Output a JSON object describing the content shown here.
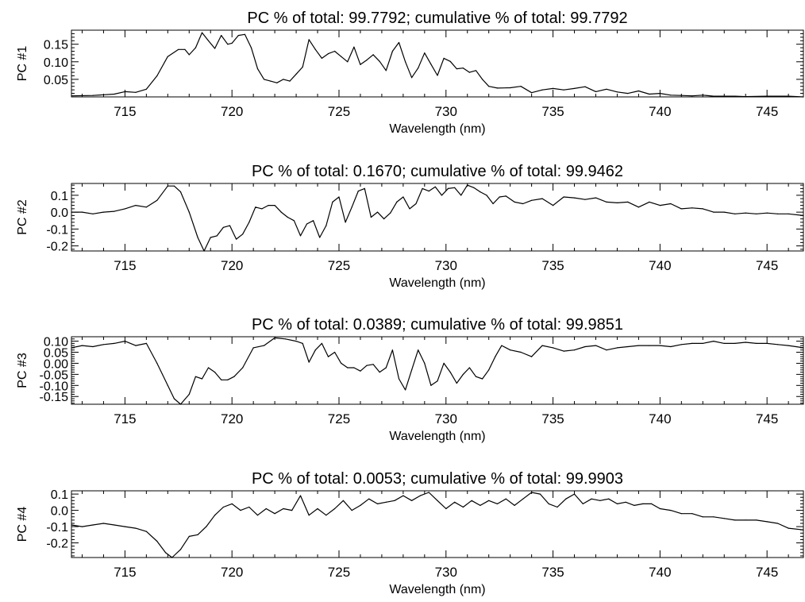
{
  "chart_data": [
    {
      "type": "line",
      "title": "PC % of total: 99.7792; cumulative % of total: 99.7792",
      "xlabel": "Wavelength (nm)",
      "ylabel": "PC #1",
      "xlim": [
        712.5,
        746.7
      ],
      "ylim": [
        0.0,
        0.19
      ],
      "xticks": [
        715,
        720,
        725,
        730,
        735,
        740,
        745
      ],
      "yticks": [
        0.05,
        0.1,
        0.15
      ],
      "ytick_labels": [
        "0.05",
        "0.10",
        "0.15"
      ],
      "series": [
        {
          "x": [
            712.5,
            713.5,
            714.5,
            715.0,
            715.5,
            716.0,
            716.5,
            717.0,
            717.5,
            717.8,
            718.0,
            718.3,
            718.6,
            718.9,
            719.2,
            719.5,
            719.8,
            720.0,
            720.3,
            720.6,
            720.9,
            721.2,
            721.5,
            721.8,
            722.1,
            722.4,
            722.7,
            723.0,
            723.3,
            723.6,
            723.9,
            724.2,
            724.5,
            724.8,
            725.1,
            725.4,
            725.7,
            726.0,
            726.3,
            726.6,
            726.9,
            727.2,
            727.5,
            727.8,
            728.1,
            728.4,
            728.7,
            729.0,
            729.3,
            729.6,
            729.9,
            730.2,
            730.5,
            730.8,
            731.1,
            731.4,
            731.7,
            732.0,
            732.4,
            733.0,
            733.5,
            734.0,
            734.5,
            735.0,
            735.5,
            736.0,
            736.5,
            737.0,
            737.5,
            738.0,
            738.5,
            739.0,
            739.5,
            740.0,
            740.5,
            741.0,
            741.5,
            742.0,
            742.5,
            743.0,
            743.5,
            744.0,
            745.0,
            746.0,
            746.7
          ],
          "y": [
            0.003,
            0.004,
            0.008,
            0.015,
            0.013,
            0.022,
            0.06,
            0.115,
            0.135,
            0.135,
            0.12,
            0.14,
            0.183,
            0.16,
            0.138,
            0.175,
            0.15,
            0.153,
            0.175,
            0.178,
            0.14,
            0.08,
            0.05,
            0.045,
            0.04,
            0.05,
            0.045,
            0.065,
            0.085,
            0.163,
            0.135,
            0.11,
            0.123,
            0.13,
            0.115,
            0.1,
            0.142,
            0.092,
            0.105,
            0.12,
            0.101,
            0.075,
            0.13,
            0.155,
            0.1,
            0.055,
            0.082,
            0.125,
            0.093,
            0.061,
            0.11,
            0.101,
            0.08,
            0.082,
            0.07,
            0.075,
            0.05,
            0.03,
            0.025,
            0.026,
            0.03,
            0.012,
            0.02,
            0.024,
            0.02,
            0.024,
            0.029,
            0.015,
            0.022,
            0.014,
            0.01,
            0.017,
            0.008,
            0.01,
            0.005,
            0.004,
            0.003,
            0.005,
            0.002,
            0.002,
            0.002,
            0.001,
            0.002,
            0.002,
            0.0
          ]
        }
      ]
    },
    {
      "type": "line",
      "title": "PC % of total:  0.1670; cumulative % of total: 99.9462",
      "xlabel": "Wavelength (nm)",
      "ylabel": "PC #2",
      "xlim": [
        712.5,
        746.7
      ],
      "ylim": [
        -0.23,
        0.17
      ],
      "xticks": [
        715,
        720,
        725,
        730,
        735,
        740,
        745
      ],
      "yticks": [
        0.1,
        0.0,
        -0.1,
        -0.2
      ],
      "ytick_labels": [
        "0.1",
        "0.0",
        "-0.1",
        "-0.2"
      ],
      "series": [
        {
          "x": [
            712.5,
            713.0,
            713.5,
            714.0,
            714.5,
            715.0,
            715.5,
            716.0,
            716.5,
            717.0,
            717.3,
            717.6,
            718.0,
            718.4,
            718.7,
            719.0,
            719.3,
            719.6,
            719.9,
            720.2,
            720.5,
            720.8,
            721.1,
            721.4,
            721.7,
            722.0,
            722.3,
            722.6,
            722.9,
            723.2,
            723.5,
            723.8,
            724.1,
            724.4,
            724.7,
            725.0,
            725.3,
            725.6,
            725.9,
            726.2,
            726.5,
            726.8,
            727.1,
            727.4,
            727.7,
            728.0,
            728.3,
            728.6,
            728.9,
            729.2,
            729.5,
            729.8,
            730.1,
            730.4,
            730.7,
            731.0,
            731.3,
            731.6,
            731.9,
            732.2,
            732.5,
            732.8,
            733.2,
            733.6,
            734.0,
            734.5,
            735.0,
            735.5,
            736.0,
            736.5,
            737.0,
            737.5,
            738.0,
            738.5,
            739.0,
            739.5,
            740.0,
            740.5,
            741.0,
            741.5,
            742.0,
            742.5,
            743.0,
            743.5,
            744.0,
            744.5,
            745.0,
            745.5,
            746.0,
            746.7
          ],
          "y": [
            0.0,
            0.0,
            -0.01,
            0.0,
            0.005,
            0.02,
            0.04,
            0.03,
            0.07,
            0.155,
            0.155,
            0.12,
            0.0,
            -0.15,
            -0.23,
            -0.15,
            -0.14,
            -0.09,
            -0.08,
            -0.16,
            -0.13,
            -0.06,
            0.03,
            0.02,
            0.04,
            0.04,
            0.0,
            -0.03,
            -0.05,
            -0.14,
            -0.07,
            -0.05,
            -0.15,
            -0.08,
            0.06,
            0.09,
            -0.06,
            0.03,
            0.125,
            0.14,
            -0.03,
            0.0,
            -0.04,
            -0.005,
            0.06,
            0.09,
            0.02,
            0.05,
            0.14,
            0.125,
            0.15,
            0.1,
            0.14,
            0.145,
            0.1,
            0.16,
            0.145,
            0.12,
            0.1,
            0.05,
            0.09,
            0.095,
            0.06,
            0.05,
            0.07,
            0.08,
            0.04,
            0.09,
            0.085,
            0.075,
            0.085,
            0.06,
            0.055,
            0.06,
            0.03,
            0.06,
            0.04,
            0.05,
            0.02,
            0.025,
            0.02,
            0.0,
            0.0,
            -0.01,
            -0.005,
            -0.01,
            -0.005,
            -0.01,
            -0.01,
            -0.02
          ]
        }
      ]
    },
    {
      "type": "line",
      "title": "PC % of total:  0.0389; cumulative % of total: 99.9851",
      "xlabel": "Wavelength (nm)",
      "ylabel": "PC #3",
      "xlim": [
        712.5,
        746.7
      ],
      "ylim": [
        -0.185,
        0.12
      ],
      "xticks": [
        715,
        720,
        725,
        730,
        735,
        740,
        745
      ],
      "yticks": [
        0.1,
        0.05,
        0.0,
        -0.05,
        -0.1,
        -0.15
      ],
      "ytick_labels": [
        "0.10",
        "0.05",
        "0.00",
        "-0.05",
        "-0.10",
        "-0.15"
      ],
      "series": [
        {
          "x": [
            712.5,
            713.0,
            713.5,
            714.0,
            714.5,
            715.0,
            715.5,
            716.0,
            716.5,
            717.0,
            717.3,
            717.6,
            718.0,
            718.3,
            718.6,
            718.9,
            719.2,
            719.5,
            719.8,
            720.1,
            720.5,
            721.0,
            721.5,
            722.0,
            722.5,
            723.0,
            723.3,
            723.6,
            723.9,
            724.2,
            724.5,
            724.8,
            725.1,
            725.4,
            725.7,
            726.0,
            726.3,
            726.6,
            726.9,
            727.2,
            727.5,
            727.8,
            728.1,
            728.4,
            728.7,
            729.0,
            729.3,
            729.6,
            729.9,
            730.2,
            730.5,
            730.8,
            731.1,
            731.4,
            731.7,
            732.0,
            732.3,
            732.6,
            733.0,
            733.5,
            734.0,
            734.5,
            735.0,
            735.5,
            736.0,
            736.5,
            737.0,
            737.5,
            738.0,
            738.5,
            739.0,
            739.5,
            740.0,
            740.5,
            741.0,
            741.5,
            742.0,
            742.5,
            743.0,
            743.5,
            744.0,
            744.5,
            745.0,
            745.5,
            746.0,
            746.7
          ],
          "y": [
            0.07,
            0.08,
            0.075,
            0.085,
            0.09,
            0.1,
            0.08,
            0.09,
            0.0,
            -0.1,
            -0.16,
            -0.185,
            -0.14,
            -0.06,
            -0.07,
            -0.02,
            -0.04,
            -0.075,
            -0.075,
            -0.06,
            -0.02,
            0.07,
            0.08,
            0.115,
            0.11,
            0.1,
            0.09,
            0.005,
            0.06,
            0.09,
            0.03,
            0.05,
            0.0,
            -0.02,
            -0.02,
            -0.035,
            -0.01,
            -0.005,
            -0.04,
            -0.02,
            0.06,
            -0.07,
            -0.12,
            -0.03,
            0.06,
            0.0,
            -0.1,
            -0.08,
            0.0,
            -0.04,
            -0.09,
            -0.05,
            -0.02,
            -0.06,
            -0.07,
            -0.03,
            0.03,
            0.08,
            0.06,
            0.05,
            0.03,
            0.08,
            0.07,
            0.055,
            0.06,
            0.075,
            0.08,
            0.06,
            0.07,
            0.075,
            0.08,
            0.08,
            0.08,
            0.075,
            0.085,
            0.09,
            0.09,
            0.1,
            0.09,
            0.09,
            0.095,
            0.09,
            0.09,
            0.085,
            0.08,
            0.07
          ]
        }
      ]
    },
    {
      "type": "line",
      "title": "PC % of total:  0.0053; cumulative % of total: 99.9903",
      "xlabel": "Wavelength (nm)",
      "ylabel": "PC #4",
      "xlim": [
        712.5,
        746.7
      ],
      "ylim": [
        -0.29,
        0.12
      ],
      "xticks": [
        715,
        720,
        725,
        730,
        735,
        740,
        745
      ],
      "yticks": [
        0.1,
        0.0,
        -0.1,
        -0.2
      ],
      "ytick_labels": [
        "0.1",
        "0.0",
        "-0.1",
        "-0.2"
      ],
      "series": [
        {
          "x": [
            712.5,
            713.0,
            713.5,
            714.0,
            714.5,
            715.0,
            715.5,
            716.0,
            716.5,
            716.9,
            717.2,
            717.6,
            718.0,
            718.4,
            718.8,
            719.2,
            719.6,
            720.0,
            720.4,
            720.8,
            721.2,
            721.6,
            722.0,
            722.4,
            722.8,
            723.2,
            723.6,
            724.0,
            724.4,
            724.8,
            725.2,
            725.6,
            726.0,
            726.4,
            726.8,
            727.2,
            727.6,
            728.0,
            728.4,
            728.8,
            729.2,
            729.6,
            730.0,
            730.4,
            730.8,
            731.2,
            731.6,
            732.0,
            732.4,
            732.8,
            733.2,
            733.6,
            734.0,
            734.4,
            734.8,
            735.2,
            735.6,
            736.0,
            736.4,
            736.8,
            737.2,
            737.6,
            738.0,
            738.4,
            738.8,
            739.2,
            739.6,
            740.0,
            740.5,
            741.0,
            741.5,
            742.0,
            742.5,
            743.0,
            743.5,
            744.0,
            744.5,
            745.0,
            745.5,
            746.0,
            746.7
          ],
          "y": [
            -0.09,
            -0.1,
            -0.09,
            -0.08,
            -0.09,
            -0.1,
            -0.11,
            -0.13,
            -0.19,
            -0.26,
            -0.29,
            -0.24,
            -0.16,
            -0.15,
            -0.1,
            -0.03,
            0.02,
            0.04,
            0.0,
            0.02,
            -0.03,
            0.01,
            -0.02,
            0.01,
            0.0,
            0.09,
            -0.03,
            0.01,
            -0.03,
            0.01,
            0.06,
            0.0,
            0.03,
            0.07,
            0.04,
            0.05,
            0.06,
            0.09,
            0.06,
            0.09,
            0.11,
            0.06,
            0.01,
            0.05,
            0.02,
            0.06,
            0.03,
            0.06,
            0.04,
            0.07,
            0.03,
            0.07,
            0.11,
            0.1,
            0.04,
            0.02,
            0.07,
            0.1,
            0.04,
            0.07,
            0.06,
            0.07,
            0.04,
            0.05,
            0.03,
            0.04,
            0.04,
            0.01,
            0.0,
            -0.02,
            -0.02,
            -0.04,
            -0.04,
            -0.05,
            -0.06,
            -0.06,
            -0.06,
            -0.07,
            -0.08,
            -0.11,
            -0.12
          ]
        }
      ]
    }
  ]
}
